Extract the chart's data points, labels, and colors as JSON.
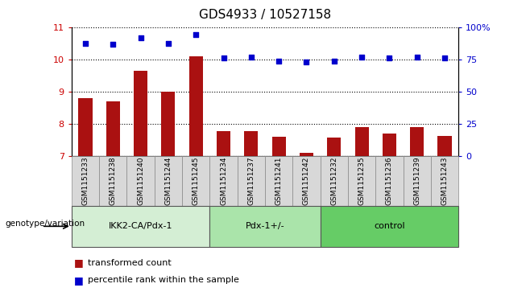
{
  "title": "GDS4933 / 10527158",
  "samples": [
    "GSM1151233",
    "GSM1151238",
    "GSM1151240",
    "GSM1151244",
    "GSM1151245",
    "GSM1151234",
    "GSM1151237",
    "GSM1151241",
    "GSM1151242",
    "GSM1151232",
    "GSM1151235",
    "GSM1151236",
    "GSM1151239",
    "GSM1151243"
  ],
  "bar_values": [
    8.8,
    8.7,
    9.65,
    9.0,
    10.1,
    7.78,
    7.78,
    7.6,
    7.1,
    7.57,
    7.9,
    7.7,
    7.9,
    7.63
  ],
  "scatter_values": [
    10.52,
    10.48,
    10.68,
    10.52,
    10.78,
    10.05,
    10.08,
    9.97,
    9.93,
    9.97,
    10.08,
    10.05,
    10.08,
    10.05
  ],
  "bar_color": "#aa1111",
  "scatter_color": "#0000cc",
  "ylim_left": [
    7,
    11
  ],
  "ylim_right": [
    0,
    100
  ],
  "yticks_left": [
    7,
    8,
    9,
    10,
    11
  ],
  "yticks_right": [
    0,
    25,
    50,
    75,
    100
  ],
  "ytick_labels_right": [
    "0",
    "25",
    "50",
    "75",
    "100%"
  ],
  "groups": [
    {
      "label": "IKK2-CA/Pdx-1",
      "start": 0,
      "end": 5,
      "color": "#d4eed4"
    },
    {
      "label": "Pdx-1+/-",
      "start": 5,
      "end": 9,
      "color": "#aae4aa"
    },
    {
      "label": "control",
      "start": 9,
      "end": 14,
      "color": "#66cc66"
    }
  ],
  "xtick_bg_color": "#d8d8d8",
  "genotype_label": "genotype/variation",
  "legend_bar_label": "transformed count",
  "legend_scatter_label": "percentile rank within the sample",
  "axis_label_color_left": "#cc0000",
  "axis_label_color_right": "#0000cc",
  "background_color": "#ffffff"
}
